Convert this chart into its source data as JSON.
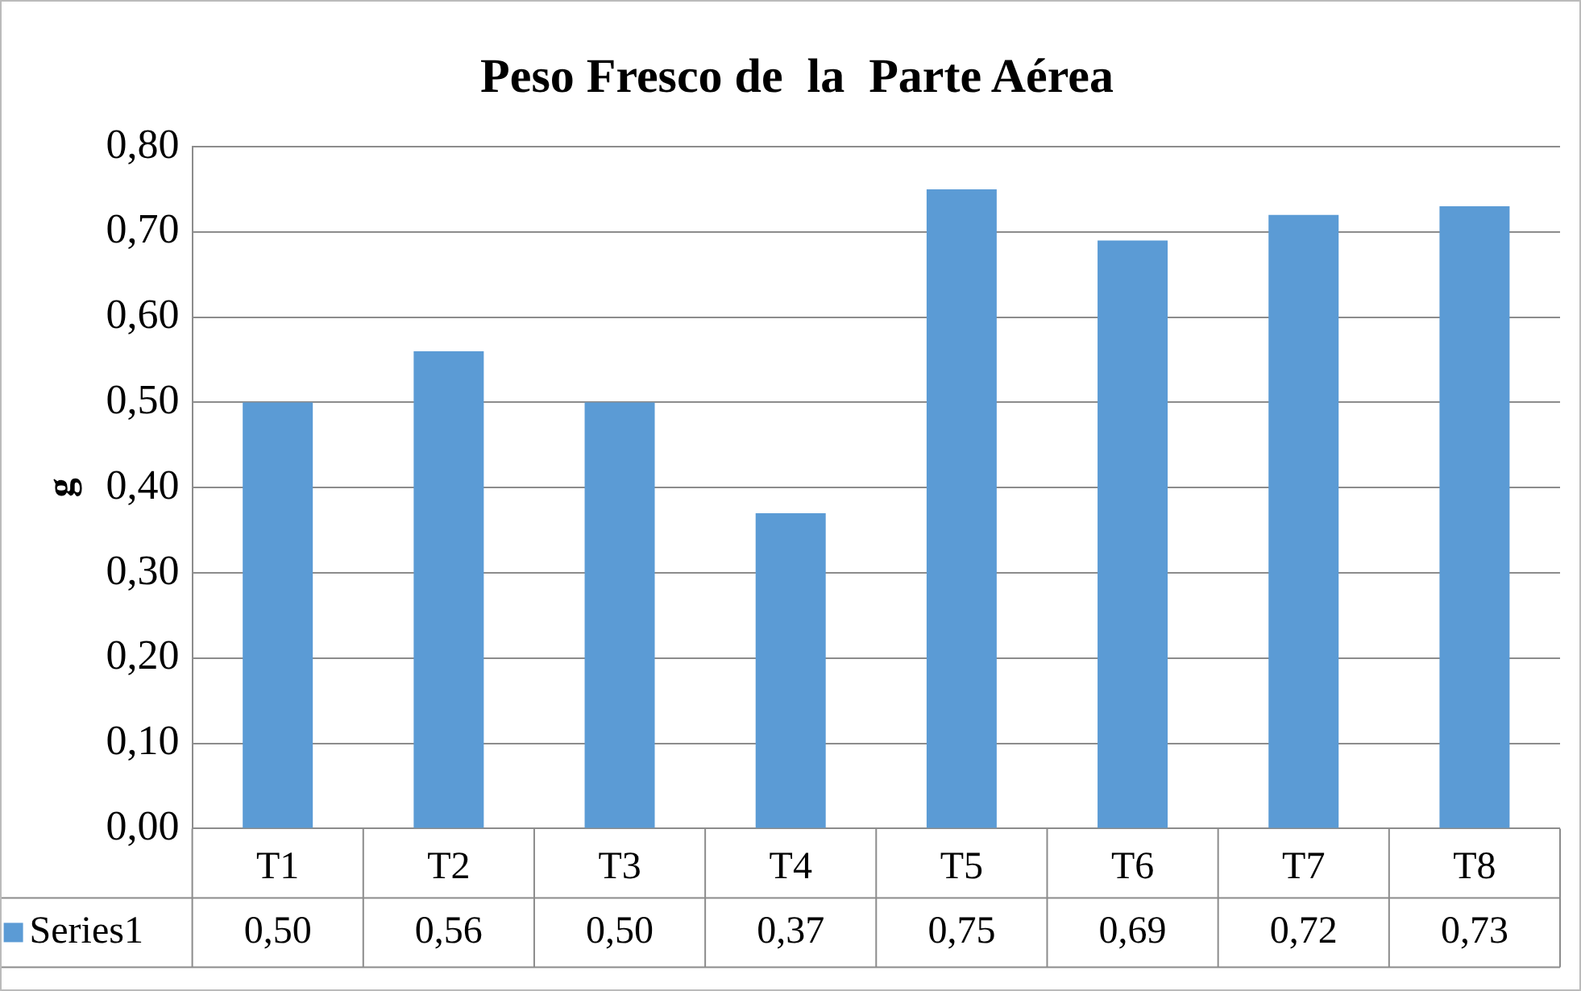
{
  "chart_data": {
    "type": "bar",
    "title": "Peso Fresco de  la  Parte Aérea",
    "ylabel": "g",
    "categories": [
      "T1",
      "T2",
      "T3",
      "T4",
      "T5",
      "T6",
      "T7",
      "T8"
    ],
    "series": [
      {
        "name": "Series1",
        "color": "#5b9bd5",
        "values": [
          0.5,
          0.56,
          0.5,
          0.37,
          0.75,
          0.69,
          0.72,
          0.73
        ],
        "value_labels": [
          "0,50",
          "0,56",
          "0,50",
          "0,37",
          "0,75",
          "0,69",
          "0,72",
          "0,73"
        ]
      }
    ],
    "ylim": [
      0,
      0.8
    ],
    "yticks": [
      {
        "value": 0,
        "label": "0,00"
      },
      {
        "value": 0.1,
        "label": "0,10"
      },
      {
        "value": 0.2,
        "label": "0,20"
      },
      {
        "value": 0.3,
        "label": "0,30"
      },
      {
        "value": 0.4,
        "label": "0,40"
      },
      {
        "value": 0.5,
        "label": "0,50"
      },
      {
        "value": 0.6,
        "label": "0,60"
      },
      {
        "value": 0.7,
        "label": "0,70"
      },
      {
        "value": 0.8,
        "label": "0,80"
      }
    ],
    "grid": "y"
  }
}
